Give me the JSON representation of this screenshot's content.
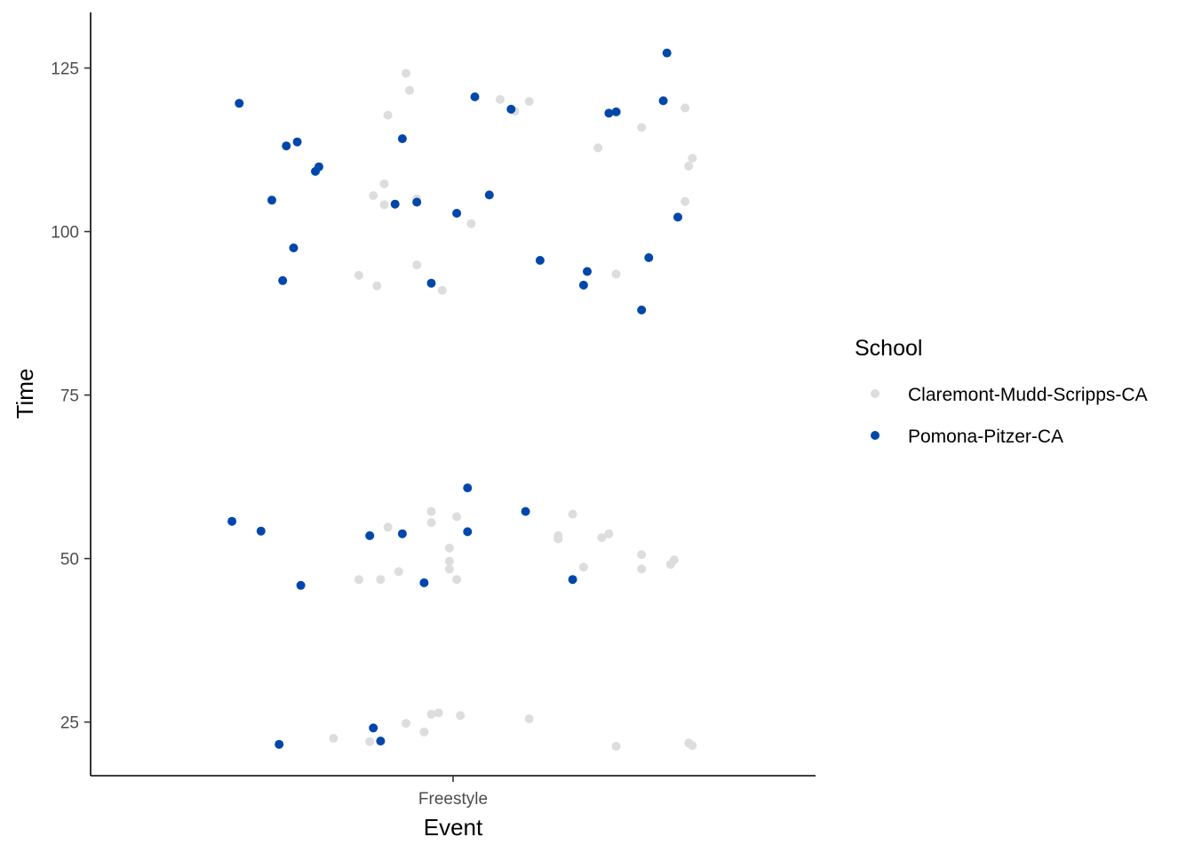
{
  "chart_data": {
    "type": "scatter",
    "title": "",
    "xlabel": "Event",
    "ylabel": "Time",
    "categories": [
      "Freestyle"
    ],
    "ylim": [
      16.8,
      133.5
    ],
    "yticks": [
      25,
      50,
      75,
      100,
      125
    ],
    "grid": false,
    "legend": {
      "title": "School",
      "placement": "right"
    },
    "series": [
      {
        "name": "Claremont-Mudd-Scripps-CA",
        "color": "#dddddd",
        "points": [
          {
            "x": -0.33,
            "y": 22.5
          },
          {
            "x": -0.26,
            "y": 46.8
          },
          {
            "x": -0.26,
            "y": 93.3
          },
          {
            "x": -0.23,
            "y": 22.0
          },
          {
            "x": -0.22,
            "y": 105.5
          },
          {
            "x": -0.21,
            "y": 91.7
          },
          {
            "x": -0.2,
            "y": 46.8
          },
          {
            "x": -0.19,
            "y": 104.1
          },
          {
            "x": -0.19,
            "y": 107.3
          },
          {
            "x": -0.18,
            "y": 117.8
          },
          {
            "x": -0.18,
            "y": 54.8
          },
          {
            "x": -0.15,
            "y": 48.0
          },
          {
            "x": -0.13,
            "y": 124.2
          },
          {
            "x": -0.13,
            "y": 24.8
          },
          {
            "x": -0.12,
            "y": 121.6
          },
          {
            "x": -0.1,
            "y": 94.9
          },
          {
            "x": -0.1,
            "y": 105.0
          },
          {
            "x": -0.08,
            "y": 23.5
          },
          {
            "x": -0.06,
            "y": 57.2
          },
          {
            "x": -0.06,
            "y": 55.5
          },
          {
            "x": -0.06,
            "y": 26.2
          },
          {
            "x": -0.04,
            "y": 26.4
          },
          {
            "x": -0.03,
            "y": 91.0
          },
          {
            "x": -0.01,
            "y": 51.6
          },
          {
            "x": -0.01,
            "y": 49.6
          },
          {
            "x": -0.01,
            "y": 48.4
          },
          {
            "x": 0.01,
            "y": 56.4
          },
          {
            "x": 0.01,
            "y": 46.8
          },
          {
            "x": 0.02,
            "y": 26.0
          },
          {
            "x": 0.05,
            "y": 101.2
          },
          {
            "x": 0.13,
            "y": 120.2
          },
          {
            "x": 0.17,
            "y": 118.4
          },
          {
            "x": 0.21,
            "y": 25.5
          },
          {
            "x": 0.21,
            "y": 119.9
          },
          {
            "x": 0.29,
            "y": 53.5
          },
          {
            "x": 0.29,
            "y": 53.0
          },
          {
            "x": 0.33,
            "y": 56.8
          },
          {
            "x": 0.36,
            "y": 48.7
          },
          {
            "x": 0.4,
            "y": 112.8
          },
          {
            "x": 0.41,
            "y": 53.2
          },
          {
            "x": 0.43,
            "y": 53.8
          },
          {
            "x": 0.45,
            "y": 93.5
          },
          {
            "x": 0.45,
            "y": 21.3
          },
          {
            "x": 0.52,
            "y": 115.9
          },
          {
            "x": 0.52,
            "y": 50.6
          },
          {
            "x": 0.52,
            "y": 48.4
          },
          {
            "x": 0.6,
            "y": 49.1
          },
          {
            "x": 0.61,
            "y": 49.8
          },
          {
            "x": 0.64,
            "y": 118.9
          },
          {
            "x": 0.64,
            "y": 104.6
          },
          {
            "x": 0.65,
            "y": 110.0
          },
          {
            "x": 0.66,
            "y": 111.2
          },
          {
            "x": 0.65,
            "y": 21.8
          },
          {
            "x": 0.66,
            "y": 21.4
          }
        ]
      },
      {
        "name": "Pomona-Pitzer-CA",
        "color": "#0047ab",
        "points": [
          {
            "x": -0.61,
            "y": 55.7
          },
          {
            "x": -0.59,
            "y": 119.6
          },
          {
            "x": -0.53,
            "y": 54.2
          },
          {
            "x": -0.5,
            "y": 104.8
          },
          {
            "x": -0.48,
            "y": 21.6
          },
          {
            "x": -0.47,
            "y": 92.5
          },
          {
            "x": -0.46,
            "y": 113.1
          },
          {
            "x": -0.44,
            "y": 97.5
          },
          {
            "x": -0.43,
            "y": 113.7
          },
          {
            "x": -0.42,
            "y": 45.9
          },
          {
            "x": -0.38,
            "y": 109.2
          },
          {
            "x": -0.37,
            "y": 109.9
          },
          {
            "x": -0.23,
            "y": 53.5
          },
          {
            "x": -0.22,
            "y": 24.1
          },
          {
            "x": -0.2,
            "y": 22.1
          },
          {
            "x": -0.16,
            "y": 104.2
          },
          {
            "x": -0.14,
            "y": 114.2
          },
          {
            "x": -0.14,
            "y": 53.8
          },
          {
            "x": -0.1,
            "y": 104.5
          },
          {
            "x": -0.08,
            "y": 46.3
          },
          {
            "x": -0.06,
            "y": 92.1
          },
          {
            "x": 0.01,
            "y": 102.8
          },
          {
            "x": 0.04,
            "y": 60.8
          },
          {
            "x": 0.04,
            "y": 54.1
          },
          {
            "x": 0.06,
            "y": 120.6
          },
          {
            "x": 0.1,
            "y": 105.6
          },
          {
            "x": 0.16,
            "y": 118.7
          },
          {
            "x": 0.2,
            "y": 57.2
          },
          {
            "x": 0.24,
            "y": 95.6
          },
          {
            "x": 0.33,
            "y": 46.8
          },
          {
            "x": 0.36,
            "y": 91.8
          },
          {
            "x": 0.37,
            "y": 93.9
          },
          {
            "x": 0.43,
            "y": 118.1
          },
          {
            "x": 0.45,
            "y": 118.3
          },
          {
            "x": 0.52,
            "y": 88.0
          },
          {
            "x": 0.54,
            "y": 96.0
          },
          {
            "x": 0.58,
            "y": 120.0
          },
          {
            "x": 0.59,
            "y": 127.3
          },
          {
            "x": 0.62,
            "y": 102.2
          }
        ]
      }
    ]
  }
}
